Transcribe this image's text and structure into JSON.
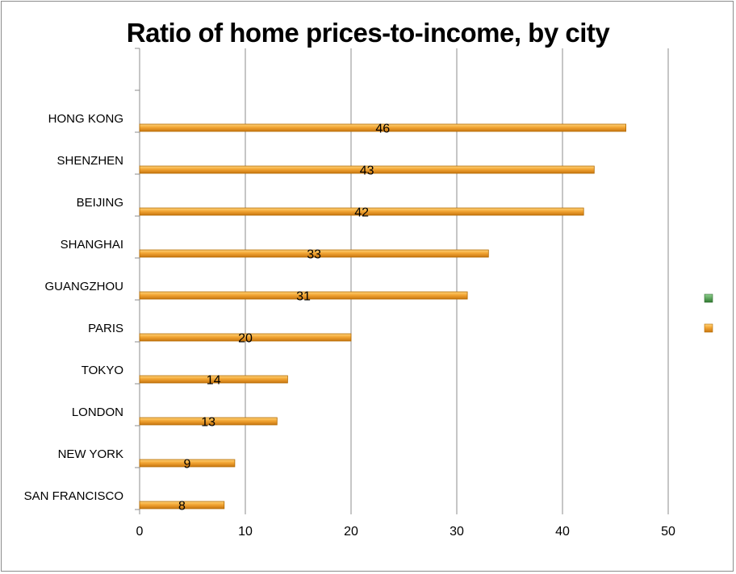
{
  "chart_data": {
    "type": "bar",
    "orientation": "horizontal",
    "title": "Ratio of home prices-to-income, by city",
    "xlabel": "",
    "ylabel": "",
    "xlim": [
      0,
      50
    ],
    "x_ticks": [
      0,
      10,
      20,
      30,
      40,
      50
    ],
    "grid": "vertical",
    "categories": [
      "HONG KONG",
      "SHENZHEN",
      "BEIJING",
      "SHANGHAI",
      "GUANGZHOU",
      "PARIS",
      "TOKYO",
      "LONDON",
      "NEW YORK",
      "SAN FRANCISCO"
    ],
    "series": [
      {
        "name": "",
        "color": "#3a8a3a",
        "values": [
          null,
          null,
          null,
          null,
          null,
          null,
          null,
          null,
          null,
          null
        ]
      },
      {
        "name": "",
        "color": "#f0a030",
        "values": [
          46,
          43,
          42,
          33,
          31,
          20,
          14,
          13,
          9,
          8
        ]
      }
    ],
    "data_labels": [
      "46",
      "43",
      "42",
      "33",
      "31",
      "20",
      "14",
      "13",
      "9",
      "8"
    ],
    "legend_position": "right",
    "bar_color": "#f0a030",
    "bar_edge_color": "#b36a00"
  }
}
